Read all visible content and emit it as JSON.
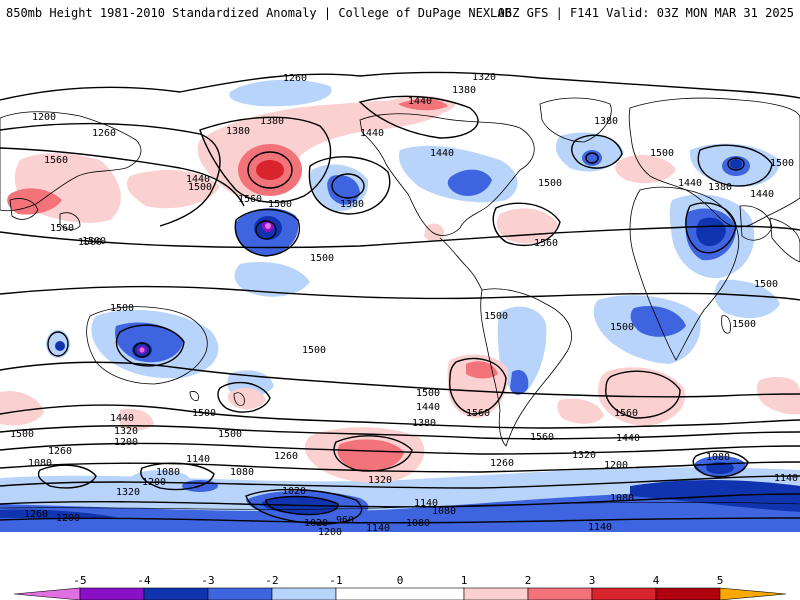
{
  "header": {
    "left": "850mb Height 1981-2010 Standardized Anomaly | College of DuPage NEXLAB",
    "right": "06Z GFS | F141 Valid: 03Z MON MAR 31 2025"
  },
  "colors": {
    "neg5": "#e070e0",
    "neg4": "#8a10c8",
    "neg3": "#1034b0",
    "neg2": "#3e64e0",
    "neg1": "#b8d4fa",
    "zero": "#ffffff",
    "pos1": "#fbd0d0",
    "pos2": "#f3737a",
    "pos3": "#d8242c",
    "pos4": "#b00010",
    "pos5": "#f8a800",
    "contour": "#000000",
    "coast": "#000000"
  },
  "colorbar": {
    "labels": [
      "-5",
      "-4",
      "-3",
      "-2",
      "-1",
      "0",
      "1",
      "2",
      "3",
      "4",
      "5"
    ]
  },
  "contour_labels": [
    "1260",
    "1320",
    "1380",
    "1440",
    "1200",
    "1260",
    "1380",
    "1440",
    "1380",
    "1560",
    "1440",
    "1500",
    "1560",
    "1440",
    "1500",
    "1560",
    "1500",
    "1380",
    "1500",
    "1380",
    "1440",
    "1380",
    "1500",
    "1440",
    "1500",
    "1560",
    "1500",
    "1500",
    "1500",
    "1500",
    "1500",
    "1500",
    "1500",
    "1560",
    "1500",
    "1500",
    "1440",
    "1560",
    "1560",
    "1500",
    "1380",
    "1440",
    "1320",
    "1260",
    "1440",
    "1320",
    "1200",
    "1260",
    "1080",
    "1140",
    "1080",
    "1200",
    "1320",
    "1260",
    "1320",
    "1140",
    "1080",
    "1020",
    "1080",
    "960",
    "1020",
    "1200",
    "1140",
    "1080",
    "1260",
    "1200",
    "1080",
    "1140",
    "1200",
    "1500",
    "1500",
    "1080",
    "1140"
  ]
}
